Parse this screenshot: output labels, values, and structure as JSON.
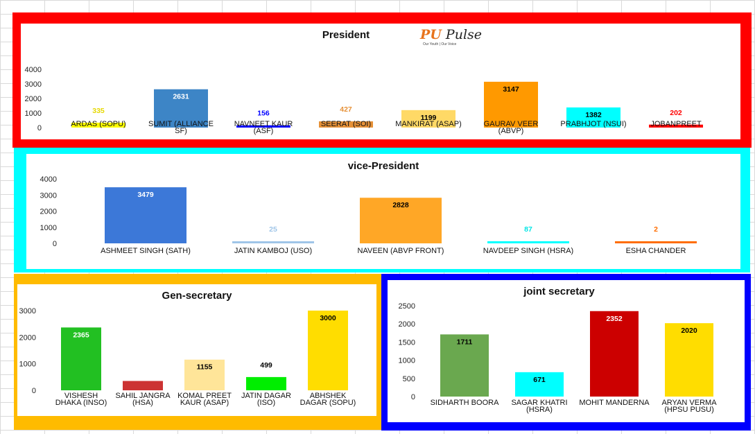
{
  "chart_data": [
    {
      "id": "president",
      "type": "bar",
      "title": "President",
      "categories": [
        "ARDAS (SOPU)",
        "SUMIT  (ALLIANCE SF)",
        "NAVNEET KAUR (ASF)",
        "SEERAT (SOI)",
        "MANKIRAT (ASAP)",
        "GAURAV VEER (ABVP)",
        "PRABHJOT (NSUI)",
        "JOBANPREET"
      ],
      "category_lines": [
        [
          "ARDAS (SOPU)"
        ],
        [
          "SUMIT  (ALLIANCE",
          "SF)"
        ],
        [
          "NAVNEET KAUR",
          "(ASF)"
        ],
        [
          "SEERAT (SOI)"
        ],
        [
          "MANKIRAT (ASAP)"
        ],
        [
          "GAURAV VEER",
          "(ABVP)"
        ],
        [
          "PRABHJOT (NSUI)"
        ],
        [
          "JOBANPREET"
        ]
      ],
      "values": [
        335,
        2631,
        156,
        427,
        1199,
        3147,
        1382,
        202
      ],
      "colors": [
        "#ffff00",
        "#3d85c6",
        "#0000ff",
        "#e69138",
        "#ffd966",
        "#ff9900",
        "#00ffff",
        "#ff0000"
      ],
      "label_colors": [
        "#e6d800",
        "#ffffff",
        "#0000ff",
        "#e69138",
        "#000000",
        "#000000",
        "#000000",
        "#ff0000"
      ],
      "yticks": [
        "4000",
        "3000",
        "2000",
        "1000",
        "0"
      ],
      "ylim": [
        0,
        4000
      ]
    },
    {
      "id": "vice",
      "type": "bar",
      "title": "vice-President",
      "categories": [
        "ASHMEET SINGH (SATH)",
        "JATIN KAMBOJ  (USO)",
        "NAVEEN (ABVP FRONT)",
        "NAVDEEP SINGH (HSRA)",
        "ESHA CHANDER"
      ],
      "category_lines": [
        [
          "ASHMEET SINGH (SATH)"
        ],
        [
          "JATIN KAMBOJ  (USO)"
        ],
        [
          "NAVEEN (ABVP FRONT)"
        ],
        [
          "NAVDEEP SINGH (HSRA)"
        ],
        [
          "ESHA CHANDER"
        ]
      ],
      "values": [
        3479,
        25,
        2828,
        87,
        2
      ],
      "colors": [
        "#3c78d8",
        "#9fc5e8",
        "#ffa726",
        "#00ffff",
        "#ff6d01"
      ],
      "label_colors": [
        "#ffffff",
        "#9fc5e8",
        "#000000",
        "#00e5e5",
        "#ff6d01"
      ],
      "yticks": [
        "4000",
        "3000",
        "2000",
        "1000",
        "0"
      ],
      "ylim": [
        0,
        4000
      ]
    },
    {
      "id": "gen",
      "type": "bar",
      "title": "Gen-secretary",
      "categories": [
        "VISHESH DHAKA (INSO)",
        "SAHIL JANGRA (HSA)",
        "KOMAL PREET KAUR (ASAP)",
        "JATIN DAGAR (ISO)",
        "ABHSHEK DAGAR (SOPU)"
      ],
      "category_lines": [
        [
          "VISHESH",
          "DHAKA (INSO)"
        ],
        [
          "SAHIL JANGRA",
          "(HSA)"
        ],
        [
          "KOMAL PREET",
          "KAUR (ASAP)"
        ],
        [
          "JATIN DAGAR",
          "(ISO)"
        ],
        [
          "ABHSHEK",
          "DAGAR (SOPU)"
        ]
      ],
      "values": [
        2365,
        352,
        1155,
        499,
        3000
      ],
      "colors": [
        "#22c022",
        "#cc3333",
        "#ffe599",
        "#00ee00",
        "#ffdd00"
      ],
      "label_colors": [
        "#ffffff",
        "#ffffff",
        "#000000",
        "#000000",
        "#000000"
      ],
      "yticks": [
        "3000",
        "2000",
        "1000",
        "0"
      ],
      "ylim": [
        0,
        3000
      ]
    },
    {
      "id": "joint",
      "type": "bar",
      "title": "joint secretary",
      "categories": [
        "SIDHARTH BOORA",
        "SAGAR KHATRI (HSRA)",
        "MOHIT MANDERNA",
        "ARYAN VERMA (HPSU PUSU)"
      ],
      "category_lines": [
        [
          "SIDHARTH BOORA"
        ],
        [
          "SAGAR KHATRI",
          "(HSRA)"
        ],
        [
          "MOHIT MANDERNA"
        ],
        [
          "ARYAN VERMA",
          "(HPSU PUSU)"
        ]
      ],
      "values": [
        1711,
        671,
        2352,
        2020
      ],
      "colors": [
        "#6aa84f",
        "#00ffff",
        "#cc0000",
        "#ffdd00"
      ],
      "label_colors": [
        "#000000",
        "#000000",
        "#ffffff",
        "#000000"
      ],
      "yticks": [
        "2500",
        "2000",
        "1500",
        "1000",
        "500",
        "0"
      ],
      "ylim": [
        0,
        2500
      ]
    }
  ],
  "logo": {
    "text": "PU Pulse",
    "tagline": "Our Youth | Our Voice"
  },
  "frame_colors": {
    "president": "#ff0000",
    "vice": "#00ffff",
    "gen": "#ffbb00",
    "joint": "#0000ff"
  }
}
